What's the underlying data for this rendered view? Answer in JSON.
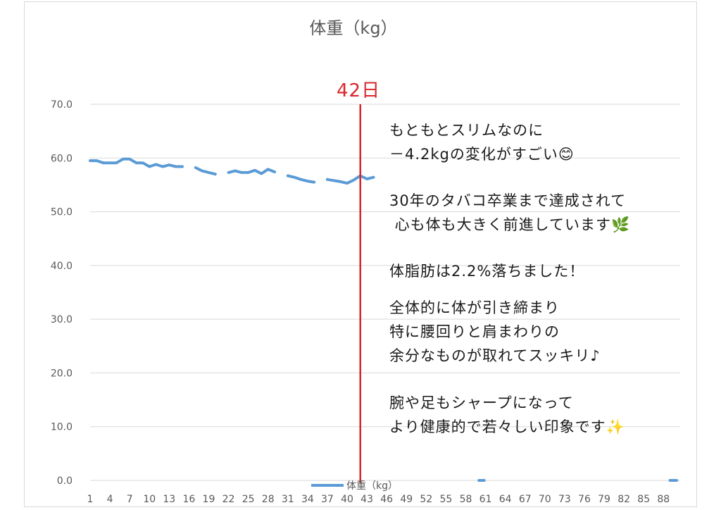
{
  "chart_data": {
    "type": "line",
    "title": "体重（kg）",
    "legend": {
      "label": "体重（kg）",
      "placement": "bottom-center"
    },
    "grid": true,
    "ylim": [
      0,
      70
    ],
    "yticks": [
      "0.0",
      "10.0",
      "20.0",
      "30.0",
      "40.0",
      "50.0",
      "60.0",
      "70.0"
    ],
    "xlim": [
      1,
      90
    ],
    "xticks": [
      1,
      4,
      7,
      10,
      13,
      16,
      19,
      22,
      25,
      28,
      31,
      34,
      37,
      40,
      43,
      46,
      49,
      52,
      55,
      58,
      61,
      64,
      67,
      70,
      73,
      76,
      79,
      82,
      85,
      88
    ],
    "series": [
      {
        "name": "体重（kg）",
        "color": "#5b9bd5",
        "segments": [
          [
            [
              1,
              59.5
            ],
            [
              2,
              59.5
            ],
            [
              3,
              59.1
            ],
            [
              4,
              59.1
            ],
            [
              5,
              59.1
            ],
            [
              6,
              59.8
            ],
            [
              7,
              59.8
            ],
            [
              8,
              59.1
            ],
            [
              9,
              59.1
            ],
            [
              10,
              58.4
            ],
            [
              11,
              58.8
            ],
            [
              12,
              58.4
            ],
            [
              13,
              58.7
            ],
            [
              14,
              58.4
            ],
            [
              15,
              58.4
            ]
          ],
          [
            [
              17,
              58.2
            ],
            [
              18,
              57.6
            ],
            [
              19,
              57.3
            ],
            [
              20,
              57.0
            ]
          ],
          [
            [
              22,
              57.3
            ],
            [
              23,
              57.6
            ],
            [
              24,
              57.3
            ],
            [
              25,
              57.3
            ],
            [
              26,
              57.7
            ],
            [
              27,
              57.1
            ],
            [
              28,
              57.9
            ],
            [
              29,
              57.4
            ]
          ],
          [
            [
              31,
              56.7
            ],
            [
              32,
              56.4
            ],
            [
              33,
              56.0
            ],
            [
              34,
              55.7
            ],
            [
              35,
              55.5
            ]
          ],
          [
            [
              37,
              56.0
            ],
            [
              38,
              55.8
            ],
            [
              39,
              55.6
            ],
            [
              40,
              55.3
            ],
            [
              41,
              55.9
            ],
            [
              42,
              56.7
            ],
            [
              43,
              56.1
            ],
            [
              44,
              56.4
            ]
          ],
          [
            [
              60,
              0
            ],
            [
              60.8,
              0
            ]
          ],
          [
            [
              89,
              0
            ],
            [
              90,
              0
            ]
          ]
        ]
      }
    ],
    "marker": {
      "x": 42,
      "label": "42日",
      "color": "#d9252b"
    }
  },
  "annotations": [
    "もともとスリムなのに\n－4.2kgの変化がすごい😊",
    "30年のタバコ卒業まで達成されて\n 心も体も大きく前進しています🌿",
    "体脂肪は2.2%落ちました！",
    "全体的に体が引き締まり\n特に腰回りと肩まわりの\n余分なものが取れてスッキリ♪",
    "腕や足もシャープになって\nより健康的で若々しい印象です✨"
  ]
}
